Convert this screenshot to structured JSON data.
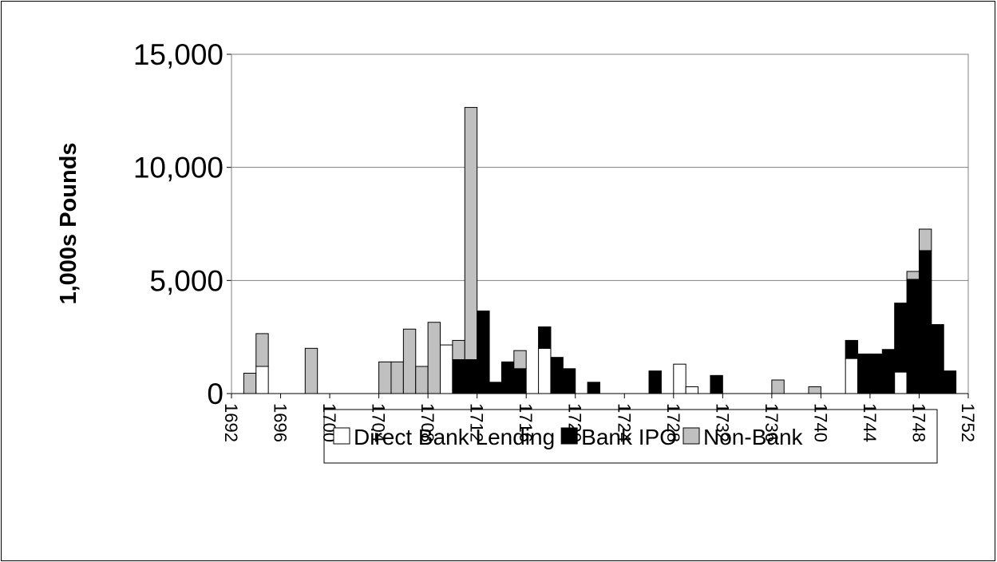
{
  "chart_data": {
    "type": "stacked_bar",
    "ylabel": "1,000s Pounds",
    "x": [
      1693,
      1694,
      1698,
      1704,
      1705,
      1706,
      1707,
      1708,
      1709,
      1710,
      1711,
      1712,
      1713,
      1714,
      1715,
      1717,
      1718,
      1719,
      1721,
      1726,
      1728,
      1729,
      1731,
      1736,
      1739,
      1742,
      1743,
      1744,
      1745,
      1746,
      1747,
      1748,
      1749,
      1750
    ],
    "series": [
      {
        "name": "Direct Bank Lending",
        "color": "#ffffff",
        "values": [
          0,
          1200,
          0,
          0,
          0,
          0,
          0,
          0,
          2150,
          0,
          0,
          0,
          0,
          0,
          0,
          2000,
          0,
          0,
          0,
          0,
          1300,
          300,
          0,
          0,
          0,
          1550,
          0,
          0,
          0,
          950,
          0,
          0,
          0,
          0
        ]
      },
      {
        "name": "Bank IPO",
        "color": "#000000",
        "values": [
          0,
          0,
          0,
          0,
          0,
          0,
          0,
          0,
          0,
          1500,
          1500,
          3650,
          500,
          1400,
          1100,
          950,
          1600,
          1100,
          500,
          1000,
          0,
          0,
          800,
          0,
          0,
          800,
          1750,
          1750,
          1950,
          3050,
          5050,
          6320,
          3050,
          1000
        ]
      },
      {
        "name": "Non-Bank",
        "color": "#c0c0c0",
        "values": [
          900,
          1450,
          2000,
          1400,
          1400,
          2850,
          1200,
          3150,
          0,
          850,
          11150,
          0,
          0,
          0,
          800,
          0,
          0,
          0,
          0,
          0,
          0,
          0,
          0,
          600,
          300,
          0,
          0,
          0,
          0,
          0,
          350,
          950,
          0,
          0
        ]
      }
    ],
    "xlim": [
      1692,
      1752
    ],
    "xticks": [
      1692,
      1696,
      1700,
      1704,
      1708,
      1712,
      1716,
      1720,
      1724,
      1728,
      1732,
      1736,
      1740,
      1744,
      1748,
      1752
    ],
    "ylim": [
      0,
      15000
    ],
    "yticks": [
      {
        "value": 0,
        "label": "0"
      },
      {
        "value": 5000,
        "label": "5,000"
      },
      {
        "value": 10000,
        "label": "10,000"
      },
      {
        "value": 15000,
        "label": "15,000"
      }
    ],
    "grid": true,
    "legend": "bottom"
  }
}
